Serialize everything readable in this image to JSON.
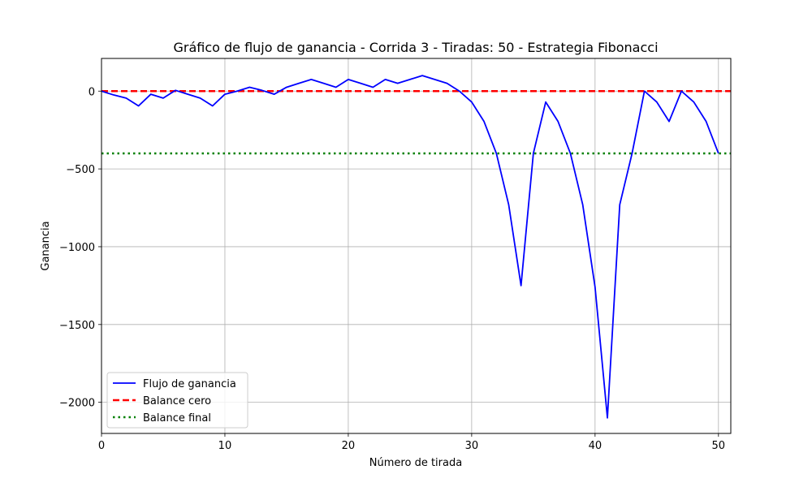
{
  "chart_data": {
    "type": "line",
    "title": "Gráfico de flujo de ganancia - Corrida 3 - Tiradas: 50 - Estrategia Fibonacci",
    "xlabel": "Número de tirada",
    "ylabel": "Ganancia",
    "xlim": [
      0,
      51
    ],
    "ylim": [
      -2200,
      210
    ],
    "xticks": [
      0,
      10,
      20,
      30,
      40,
      50
    ],
    "yticks": [
      0,
      -500,
      -1000,
      -1500,
      -2000
    ],
    "xtick_labels": [
      "0",
      "10",
      "20",
      "30",
      "40",
      "50"
    ],
    "ytick_labels": [
      "0",
      "−500",
      "−1000",
      "−1500",
      "−2000"
    ],
    "grid": true,
    "legend_position": "lower-left",
    "series": [
      {
        "name": "Flujo de ganancia",
        "style": "solid",
        "color": "#0000ff",
        "x": [
          0,
          1,
          2,
          3,
          4,
          5,
          6,
          7,
          8,
          9,
          10,
          11,
          12,
          13,
          14,
          15,
          16,
          17,
          18,
          19,
          20,
          21,
          22,
          23,
          24,
          25,
          26,
          27,
          28,
          29,
          30,
          31,
          32,
          33,
          34,
          35,
          36,
          37,
          38,
          39,
          40,
          41,
          42,
          43,
          44,
          45,
          46,
          47,
          48,
          49,
          50
        ],
        "y": [
          0,
          -25,
          -45,
          -95,
          -20,
          -45,
          5,
          -20,
          -45,
          -95,
          -20,
          0,
          25,
          5,
          -20,
          25,
          50,
          75,
          50,
          25,
          75,
          50,
          25,
          75,
          50,
          75,
          100,
          75,
          50,
          0,
          -70,
          -195,
          -400,
          -730,
          -1250,
          -400,
          -70,
          -195,
          -400,
          -730,
          -1260,
          -2100,
          -730,
          -400,
          0,
          -70,
          -195,
          0,
          -70,
          -195,
          -400
        ]
      },
      {
        "name": "Balance cero",
        "style": "dashed",
        "color": "#ff0000",
        "y_constant": 0
      },
      {
        "name": "Balance final",
        "style": "dotted",
        "color": "#008000",
        "y_constant": -400
      }
    ]
  }
}
